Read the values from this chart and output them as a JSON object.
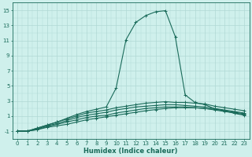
{
  "xlabel": "Humidex (Indice chaleur)",
  "bg_color": "#cff0ec",
  "grid_color": "#b0d8d4",
  "line_color": "#1a6b5a",
  "x_data": [
    0,
    1,
    2,
    3,
    4,
    5,
    6,
    7,
    8,
    9,
    10,
    11,
    12,
    13,
    14,
    15,
    16,
    17,
    18,
    19,
    20,
    21,
    22,
    23
  ],
  "curves": [
    [
      -1.0,
      -1.0,
      -0.8,
      -0.5,
      -0.3,
      -0.1,
      0.2,
      0.5,
      0.7,
      0.9,
      1.1,
      1.3,
      1.5,
      1.7,
      1.85,
      2.0,
      2.1,
      2.1,
      2.1,
      2.0,
      1.9,
      1.7,
      1.5,
      1.3
    ],
    [
      -1.0,
      -1.0,
      -0.8,
      -0.4,
      -0.1,
      0.2,
      0.5,
      0.8,
      1.0,
      1.1,
      1.4,
      1.6,
      1.8,
      2.0,
      2.1,
      2.2,
      2.2,
      2.2,
      2.1,
      2.0,
      1.8,
      1.6,
      1.4,
      1.2
    ],
    [
      -1.0,
      -1.0,
      -0.7,
      -0.3,
      0.0,
      0.4,
      0.8,
      1.1,
      1.3,
      1.5,
      1.8,
      2.0,
      2.2,
      2.3,
      2.4,
      2.5,
      2.5,
      2.4,
      2.3,
      2.2,
      2.0,
      1.8,
      1.6,
      1.4
    ],
    [
      -1.0,
      -1.0,
      -0.6,
      -0.2,
      0.2,
      0.6,
      1.0,
      1.4,
      1.6,
      1.8,
      2.1,
      2.3,
      2.5,
      2.7,
      2.8,
      2.9,
      2.8,
      2.8,
      2.7,
      2.6,
      2.3,
      2.1,
      1.9,
      1.7
    ],
    [
      -1.0,
      -1.0,
      -0.6,
      -0.2,
      0.2,
      0.7,
      1.2,
      1.6,
      1.9,
      2.2,
      4.7,
      11.1,
      13.4,
      14.3,
      14.8,
      14.95,
      11.5,
      3.8,
      2.8,
      2.5,
      1.95,
      1.7,
      1.35,
      1.1
    ]
  ],
  "ylim": [
    -1.8,
    16
  ],
  "xlim": [
    -0.5,
    23.5
  ],
  "yticks": [
    -1,
    1,
    3,
    5,
    7,
    9,
    11,
    13,
    15
  ],
  "xticks": [
    0,
    1,
    2,
    3,
    4,
    5,
    6,
    7,
    8,
    9,
    10,
    11,
    12,
    13,
    14,
    15,
    16,
    17,
    18,
    19,
    20,
    21,
    22,
    23
  ],
  "marker": "+",
  "markersize": 3,
  "linewidth": 0.8,
  "tick_fontsize": 5.0,
  "xlabel_fontsize": 6.0
}
